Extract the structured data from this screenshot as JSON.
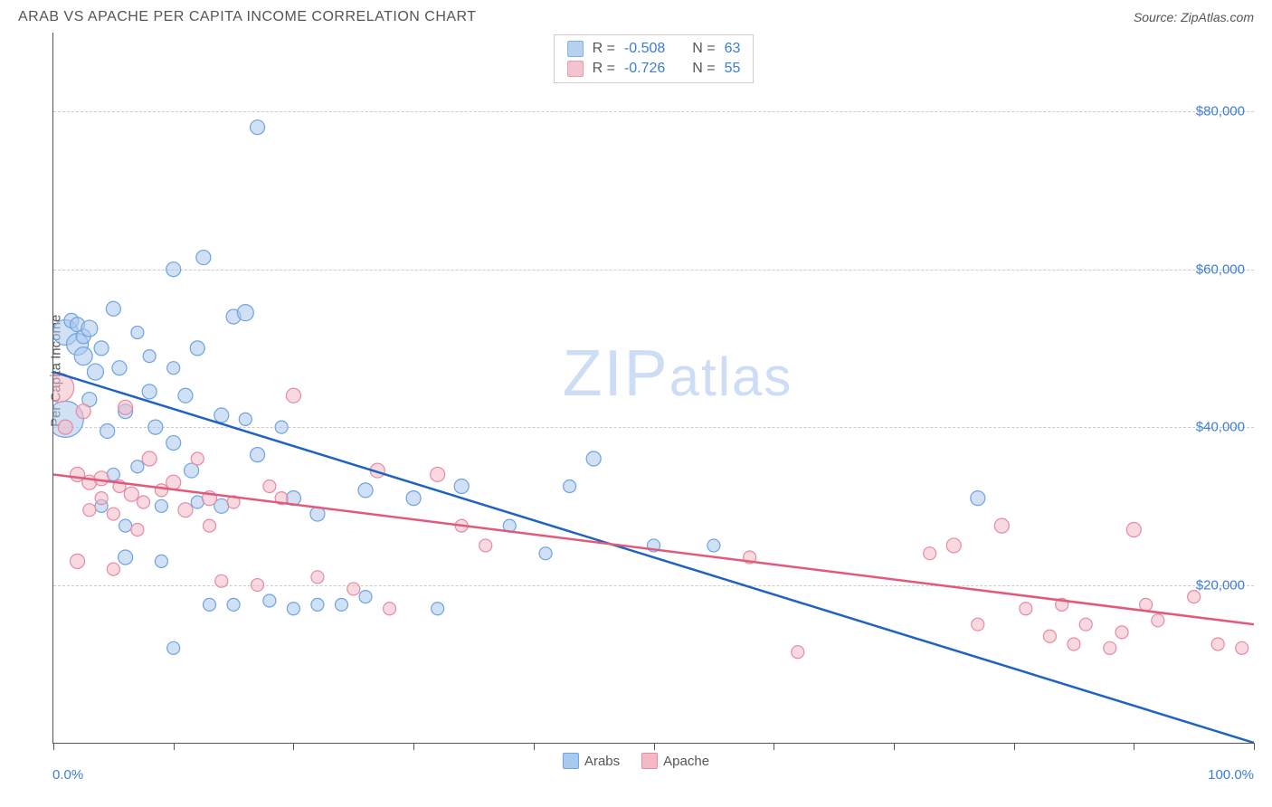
{
  "title": "ARAB VS APACHE PER CAPITA INCOME CORRELATION CHART",
  "source": "Source: ZipAtlas.com",
  "ylabel": "Per Capita Income",
  "watermark_main": "ZIP",
  "watermark_sub": "atlas",
  "chart": {
    "type": "scatter",
    "xlim": [
      0,
      100
    ],
    "ylim": [
      0,
      90000
    ],
    "xticks": [
      0,
      10,
      20,
      30,
      40,
      50,
      60,
      70,
      80,
      90,
      100
    ],
    "yticks": [
      20000,
      40000,
      60000,
      80000
    ],
    "ytick_labels": [
      "$20,000",
      "$40,000",
      "$60,000",
      "$80,000"
    ],
    "xmin_label": "0.0%",
    "xmax_label": "100.0%",
    "background_color": "#ffffff",
    "grid_color": "#cccccc",
    "axis_color": "#555555",
    "tick_label_color": "#3b7dd8"
  },
  "series": [
    {
      "name": "Arabs",
      "fill": "#a9c9ee",
      "stroke": "#6fa3df",
      "fill_opacity": 0.55,
      "line_color": "#1e63c4",
      "line_width": 2.5,
      "trend": {
        "x1": 0,
        "y1": 47000,
        "x2": 100,
        "y2": 0
      },
      "R": "-0.508",
      "N": "63",
      "points": [
        {
          "x": 1,
          "y": 52000,
          "r": 14
        },
        {
          "x": 1,
          "y": 41000,
          "r": 20
        },
        {
          "x": 1.5,
          "y": 53500,
          "r": 8
        },
        {
          "x": 2,
          "y": 50500,
          "r": 12
        },
        {
          "x": 2.5,
          "y": 51500,
          "r": 8
        },
        {
          "x": 2.5,
          "y": 49000,
          "r": 10
        },
        {
          "x": 2,
          "y": 53000,
          "r": 8
        },
        {
          "x": 3,
          "y": 52500,
          "r": 9
        },
        {
          "x": 3.5,
          "y": 47000,
          "r": 9
        },
        {
          "x": 3,
          "y": 43500,
          "r": 8
        },
        {
          "x": 4,
          "y": 50000,
          "r": 8
        },
        {
          "x": 4.5,
          "y": 39500,
          "r": 8
        },
        {
          "x": 4,
          "y": 30000,
          "r": 7
        },
        {
          "x": 5,
          "y": 55000,
          "r": 8
        },
        {
          "x": 5,
          "y": 34000,
          "r": 7
        },
        {
          "x": 5.5,
          "y": 47500,
          "r": 8
        },
        {
          "x": 6,
          "y": 42000,
          "r": 8
        },
        {
          "x": 6,
          "y": 23500,
          "r": 8
        },
        {
          "x": 6,
          "y": 27500,
          "r": 7
        },
        {
          "x": 7,
          "y": 52000,
          "r": 7
        },
        {
          "x": 7,
          "y": 35000,
          "r": 7
        },
        {
          "x": 8,
          "y": 44500,
          "r": 8
        },
        {
          "x": 8,
          "y": 49000,
          "r": 7
        },
        {
          "x": 8.5,
          "y": 40000,
          "r": 8
        },
        {
          "x": 9,
          "y": 30000,
          "r": 7
        },
        {
          "x": 9,
          "y": 23000,
          "r": 7
        },
        {
          "x": 10,
          "y": 60000,
          "r": 8
        },
        {
          "x": 10,
          "y": 47500,
          "r": 7
        },
        {
          "x": 10,
          "y": 38000,
          "r": 8
        },
        {
          "x": 10,
          "y": 12000,
          "r": 7
        },
        {
          "x": 11,
          "y": 44000,
          "r": 8
        },
        {
          "x": 11.5,
          "y": 34500,
          "r": 8
        },
        {
          "x": 12,
          "y": 50000,
          "r": 8
        },
        {
          "x": 12.5,
          "y": 61500,
          "r": 8
        },
        {
          "x": 12,
          "y": 30500,
          "r": 7
        },
        {
          "x": 13,
          "y": 17500,
          "r": 7
        },
        {
          "x": 14,
          "y": 41500,
          "r": 8
        },
        {
          "x": 14,
          "y": 30000,
          "r": 8
        },
        {
          "x": 15,
          "y": 54000,
          "r": 8
        },
        {
          "x": 15,
          "y": 17500,
          "r": 7
        },
        {
          "x": 16,
          "y": 54500,
          "r": 9
        },
        {
          "x": 16,
          "y": 41000,
          "r": 7
        },
        {
          "x": 17,
          "y": 78000,
          "r": 8
        },
        {
          "x": 17,
          "y": 36500,
          "r": 8
        },
        {
          "x": 18,
          "y": 18000,
          "r": 7
        },
        {
          "x": 19,
          "y": 40000,
          "r": 7
        },
        {
          "x": 20,
          "y": 31000,
          "r": 8
        },
        {
          "x": 20,
          "y": 17000,
          "r": 7
        },
        {
          "x": 22,
          "y": 17500,
          "r": 7
        },
        {
          "x": 22,
          "y": 29000,
          "r": 8
        },
        {
          "x": 24,
          "y": 17500,
          "r": 7
        },
        {
          "x": 26,
          "y": 32000,
          "r": 8
        },
        {
          "x": 26,
          "y": 18500,
          "r": 7
        },
        {
          "x": 30,
          "y": 31000,
          "r": 8
        },
        {
          "x": 32,
          "y": 17000,
          "r": 7
        },
        {
          "x": 34,
          "y": 32500,
          "r": 8
        },
        {
          "x": 38,
          "y": 27500,
          "r": 7
        },
        {
          "x": 41,
          "y": 24000,
          "r": 7
        },
        {
          "x": 43,
          "y": 32500,
          "r": 7
        },
        {
          "x": 45,
          "y": 36000,
          "r": 8
        },
        {
          "x": 50,
          "y": 25000,
          "r": 7
        },
        {
          "x": 55,
          "y": 25000,
          "r": 7
        },
        {
          "x": 77,
          "y": 31000,
          "r": 8
        }
      ]
    },
    {
      "name": "Apache",
      "fill": "#f3b9c6",
      "stroke": "#e78aa1",
      "fill_opacity": 0.55,
      "line_color": "#e05a7a",
      "line_width": 2.5,
      "trend": {
        "x1": 0,
        "y1": 34000,
        "x2": 100,
        "y2": 15000
      },
      "R": "-0.726",
      "N": "55",
      "points": [
        {
          "x": 0.5,
          "y": 45000,
          "r": 16
        },
        {
          "x": 1,
          "y": 40000,
          "r": 8
        },
        {
          "x": 2,
          "y": 34000,
          "r": 8
        },
        {
          "x": 2,
          "y": 23000,
          "r": 8
        },
        {
          "x": 2.5,
          "y": 42000,
          "r": 8
        },
        {
          "x": 3,
          "y": 33000,
          "r": 8
        },
        {
          "x": 3,
          "y": 29500,
          "r": 7
        },
        {
          "x": 4,
          "y": 33500,
          "r": 8
        },
        {
          "x": 4,
          "y": 31000,
          "r": 7
        },
        {
          "x": 5,
          "y": 29000,
          "r": 7
        },
        {
          "x": 5,
          "y": 22000,
          "r": 7
        },
        {
          "x": 5.5,
          "y": 32500,
          "r": 7
        },
        {
          "x": 6,
          "y": 42500,
          "r": 8
        },
        {
          "x": 6.5,
          "y": 31500,
          "r": 8
        },
        {
          "x": 7,
          "y": 27000,
          "r": 7
        },
        {
          "x": 7.5,
          "y": 30500,
          "r": 7
        },
        {
          "x": 8,
          "y": 36000,
          "r": 8
        },
        {
          "x": 9,
          "y": 32000,
          "r": 7
        },
        {
          "x": 10,
          "y": 33000,
          "r": 8
        },
        {
          "x": 11,
          "y": 29500,
          "r": 8
        },
        {
          "x": 12,
          "y": 36000,
          "r": 7
        },
        {
          "x": 13,
          "y": 27500,
          "r": 7
        },
        {
          "x": 13,
          "y": 31000,
          "r": 8
        },
        {
          "x": 14,
          "y": 20500,
          "r": 7
        },
        {
          "x": 15,
          "y": 30500,
          "r": 7
        },
        {
          "x": 17,
          "y": 20000,
          "r": 7
        },
        {
          "x": 18,
          "y": 32500,
          "r": 7
        },
        {
          "x": 19,
          "y": 31000,
          "r": 7
        },
        {
          "x": 20,
          "y": 44000,
          "r": 8
        },
        {
          "x": 22,
          "y": 21000,
          "r": 7
        },
        {
          "x": 25,
          "y": 19500,
          "r": 7
        },
        {
          "x": 27,
          "y": 34500,
          "r": 8
        },
        {
          "x": 28,
          "y": 17000,
          "r": 7
        },
        {
          "x": 32,
          "y": 34000,
          "r": 8
        },
        {
          "x": 34,
          "y": 27500,
          "r": 7
        },
        {
          "x": 36,
          "y": 25000,
          "r": 7
        },
        {
          "x": 58,
          "y": 23500,
          "r": 7
        },
        {
          "x": 62,
          "y": 11500,
          "r": 7
        },
        {
          "x": 73,
          "y": 24000,
          "r": 7
        },
        {
          "x": 75,
          "y": 25000,
          "r": 8
        },
        {
          "x": 77,
          "y": 15000,
          "r": 7
        },
        {
          "x": 79,
          "y": 27500,
          "r": 8
        },
        {
          "x": 81,
          "y": 17000,
          "r": 7
        },
        {
          "x": 83,
          "y": 13500,
          "r": 7
        },
        {
          "x": 84,
          "y": 17500,
          "r": 7
        },
        {
          "x": 85,
          "y": 12500,
          "r": 7
        },
        {
          "x": 86,
          "y": 15000,
          "r": 7
        },
        {
          "x": 88,
          "y": 12000,
          "r": 7
        },
        {
          "x": 89,
          "y": 14000,
          "r": 7
        },
        {
          "x": 90,
          "y": 27000,
          "r": 8
        },
        {
          "x": 91,
          "y": 17500,
          "r": 7
        },
        {
          "x": 92,
          "y": 15500,
          "r": 7
        },
        {
          "x": 95,
          "y": 18500,
          "r": 7
        },
        {
          "x": 97,
          "y": 12500,
          "r": 7
        },
        {
          "x": 99,
          "y": 12000,
          "r": 7
        }
      ]
    }
  ],
  "correlation_box": {
    "R_label": "R =",
    "N_label": "N ="
  },
  "bottom_legend": {
    "label1": "Arabs",
    "label2": "Apache"
  }
}
